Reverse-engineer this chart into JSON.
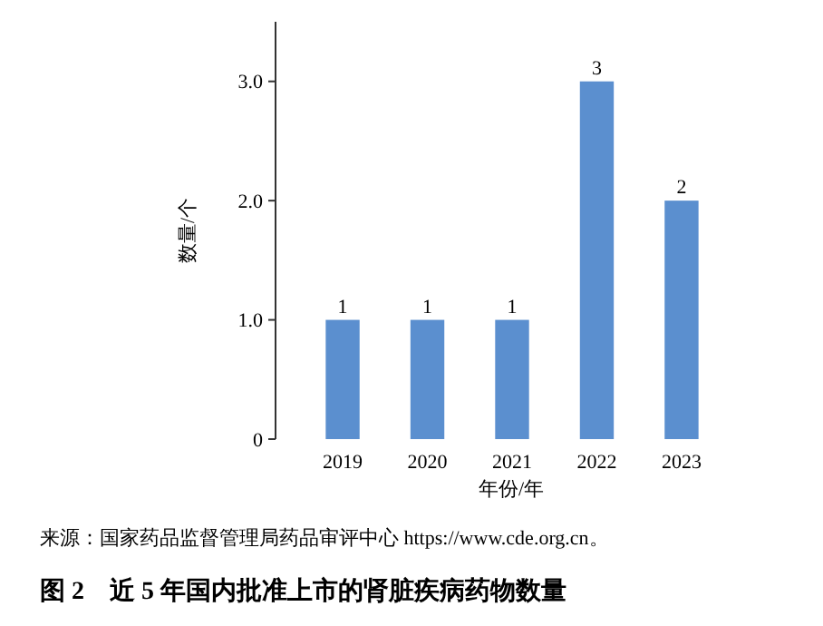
{
  "chart_data": {
    "type": "bar",
    "title": "图 2　近 5 年国内批准上市的肾脏疾病药物数量",
    "categories": [
      "2019",
      "2020",
      "2021",
      "2022",
      "2023"
    ],
    "values": [
      1,
      1,
      1,
      3,
      2
    ],
    "color": "#5b8fcf",
    "xlabel": "年份/年",
    "ylabel": "数量/个",
    "ylim": [
      0,
      3.5
    ],
    "yticks": [
      {
        "value": 0,
        "label": "0"
      },
      {
        "value": 1,
        "label": "1.0"
      },
      {
        "value": 2,
        "label": "2.0"
      },
      {
        "value": 3,
        "label": "3.0"
      }
    ],
    "data_labels": true,
    "annotations": [
      "来源：国家药品监督管理局药品审评中心 https://www.cde.org.cn。"
    ]
  }
}
